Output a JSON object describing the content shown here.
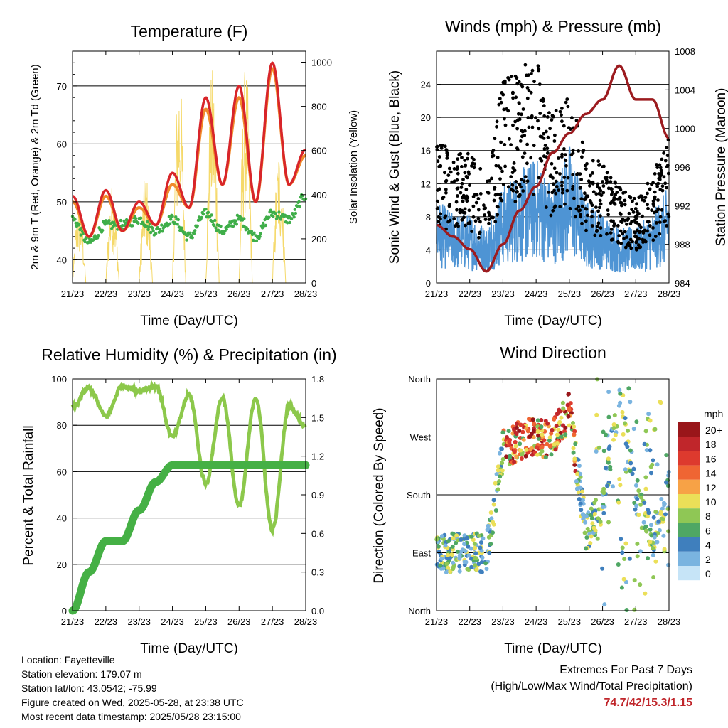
{
  "panels": {
    "temp": {
      "title": "Temperature (F)",
      "xlabel": "Time (Day/UTC)",
      "ylabel_left": "2m & 9m T (Red, Orange) & 2m Td (Green)",
      "ylabel_right": "Solar Insolation (Yellow)"
    },
    "wind": {
      "title": "Winds (mph) & Pressure (mb)",
      "xlabel": "Time (Day/UTC)",
      "ylabel_left": "Sonic Wind & Gust (Blue, Black)",
      "ylabel_right": "Station Pressure (Maroon)"
    },
    "rh": {
      "title": "Relative Humidity (%) & Precipitation (in)",
      "xlabel": "Time (Day/UTC)",
      "ylabel_left": "Percent & Total Rainfall"
    },
    "dir": {
      "title": "Wind Direction",
      "xlabel": "Time (Day/UTC)",
      "ylabel_left": "Direction (Colored By Speed)",
      "legend_title": "mph",
      "legend_labels": [
        "20+",
        "18",
        "16",
        "14",
        "12",
        "10",
        "8",
        "6",
        "4",
        "2",
        "0"
      ],
      "legend_colors": [
        "#99161a",
        "#c0262b",
        "#dd3a2e",
        "#ef6533",
        "#f7a246",
        "#ebdf58",
        "#8fc755",
        "#4fa764",
        "#3f7fbd",
        "#7ab4e0",
        "#c6e4f7"
      ]
    }
  },
  "x_ticks": [
    "21/23",
    "22/23",
    "23/23",
    "24/23",
    "25/23",
    "26/23",
    "27/23",
    "28/23"
  ],
  "station": {
    "location": "Location: Fayetteville",
    "elevation": "Station elevation: 179.07 m",
    "latlon": "Station lat/lon: 43.0542; -75.99",
    "created": "Figure created on Wed, 2025-05-28, at 23:38 UTC",
    "latest": "Most recent data timestamp: 2025/05/28 23:15:00"
  },
  "extremes": {
    "title": "Extremes For Past 7 Days",
    "subtitle": "(High/Low/Max Wind/Total Precipitation)",
    "values": "74.7/42/15.3/1.15"
  },
  "colors": {
    "temp2m": "#d8252a",
    "temp9m": "#f08a2c",
    "dewpoint": "#3fae49",
    "solar": "#f5d96a",
    "wind": "#4e94d4",
    "gust": "#000000",
    "pressure": "#9c1b1f",
    "rh": "#8cc84b",
    "precip": "#45b045"
  },
  "chart_data": [
    {
      "type": "line",
      "title": "Temperature (F)",
      "xlabel": "Time (Day/UTC)",
      "ylabel": "2m & 9m T (Red, Orange) & 2m Td (Green)",
      "y2label": "Solar Insolation (Yellow)",
      "x": [
        21.0,
        21.5,
        22.0,
        22.5,
        23.0,
        23.5,
        24.0,
        24.5,
        25.0,
        25.5,
        26.0,
        26.5,
        27.0,
        27.5,
        28.0
      ],
      "ylim": [
        36,
        76
      ],
      "y2lim": [
        0,
        1050
      ],
      "series": [
        {
          "axis": "left",
          "values": [
            51,
            44,
            52,
            45,
            50,
            46,
            55,
            49,
            68,
            53,
            70,
            50,
            74,
            53,
            59
          ]
        },
        {
          "axis": "left",
          "values": [
            50,
            44,
            51,
            45,
            49,
            46,
            53,
            49,
            66,
            53,
            68,
            50,
            73,
            53,
            58
          ]
        },
        {
          "axis": "left",
          "values": [
            47,
            43,
            46,
            46,
            47,
            45,
            47,
            44,
            48,
            45,
            47,
            44,
            48,
            47,
            51
          ]
        },
        {
          "axis": "right",
          "values": [
            0,
            0,
            380,
            0,
            450,
            0,
            500,
            0,
            1000,
            0,
            980,
            0,
            1000,
            0,
            620
          ]
        }
      ]
    },
    {
      "type": "line",
      "title": "Winds (mph) & Pressure (mb)",
      "xlabel": "Time (Day/UTC)",
      "ylabel": "Sonic Wind & Gust (Blue, Black)",
      "y2label": "Station Pressure (Maroon)",
      "x": [
        21.0,
        21.5,
        22.0,
        22.5,
        23.0,
        23.5,
        24.0,
        24.5,
        25.0,
        25.5,
        26.0,
        26.5,
        27.0,
        27.5,
        28.0
      ],
      "ylim": [
        0,
        28
      ],
      "y2lim": [
        984,
        1008
      ],
      "series": [
        {
          "axis": "left",
          "values": [
            6,
            5,
            5,
            4,
            7,
            8,
            9,
            7,
            10,
            6,
            5,
            4,
            4,
            5,
            7
          ]
        },
        {
          "axis": "left",
          "values": [
            12,
            11,
            11,
            9,
            17,
            18,
            19,
            14,
            16,
            11,
            10,
            8,
            7,
            9,
            13
          ]
        },
        {
          "axis": "right",
          "values": [
            990,
            988.8,
            987.5,
            985.2,
            988,
            991.5,
            994,
            997.5,
            999.5,
            1001.5,
            1003,
            1006.5,
            1003,
            1003,
            999
          ]
        }
      ]
    },
    {
      "type": "line",
      "title": "Relative Humidity (%) & Precipitation (in)",
      "xlabel": "Time (Day/UTC)",
      "ylabel": "Percent & Total Rainfall",
      "x": [
        21.0,
        21.5,
        22.0,
        22.5,
        23.0,
        23.5,
        24.0,
        24.5,
        25.0,
        25.5,
        26.0,
        26.5,
        27.0,
        27.5,
        28.0
      ],
      "ylim": [
        0,
        100
      ],
      "y2lim": [
        0,
        1.8
      ],
      "series": [
        {
          "axis": "left",
          "values": [
            88,
            96,
            84,
            97,
            95,
            97,
            75,
            93,
            55,
            92,
            45,
            92,
            35,
            88,
            80
          ]
        },
        {
          "axis": "right",
          "values": [
            0.0,
            0.3,
            0.54,
            0.54,
            0.78,
            1.0,
            1.13,
            1.13,
            1.13,
            1.13,
            1.13,
            1.13,
            1.13,
            1.13,
            1.13
          ]
        }
      ]
    },
    {
      "type": "scatter",
      "title": "Wind Direction",
      "xlabel": "Time (Day/UTC)",
      "ylabel": "Direction (Colored By Speed)",
      "y_tick_labels": [
        "North",
        "East",
        "South",
        "West",
        "North"
      ],
      "ylim": [
        0,
        360
      ],
      "x": [
        21.0,
        21.5,
        22.0,
        22.5,
        23.0,
        23.5,
        24.0,
        24.5,
        25.0,
        25.5,
        26.0,
        26.5,
        27.0,
        27.5,
        28.0
      ],
      "values": [
        85,
        90,
        92,
        88,
        250,
        265,
        270,
        265,
        310,
        120,
        165,
        340,
        180,
        110,
        190
      ]
    }
  ]
}
